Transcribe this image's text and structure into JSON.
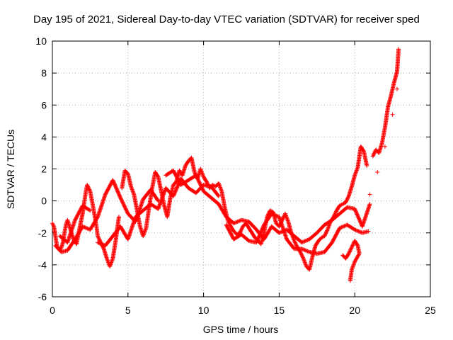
{
  "chart_data": {
    "type": "scatter",
    "title": "Day 195 of 2021, Sidereal Day-to-day VTEC variation (SDTVAR) for receiver sped",
    "xlabel": "GPS time / hours",
    "ylabel": "SDTVAR / TECUs",
    "xlim": [
      0,
      25
    ],
    "ylim": [
      -6,
      10
    ],
    "x_ticks": [
      0,
      5,
      10,
      15,
      20,
      25
    ],
    "y_ticks": [
      -6,
      -4,
      -2,
      0,
      2,
      4,
      6,
      8,
      10
    ],
    "x_tick_labels": [
      "0",
      "5",
      "10",
      "15",
      "20",
      "25"
    ],
    "y_tick_labels": [
      "-6",
      "-4",
      "-2",
      "0",
      "2",
      "4",
      "6",
      "8",
      "10"
    ],
    "grid": true,
    "legend": "none",
    "marker": "+",
    "series_color": "#ff0000",
    "series": [
      {
        "name": "SDTVAR",
        "points": [
          [
            0.0,
            -1.4
          ],
          [
            0.1,
            -1.6
          ],
          [
            0.2,
            -2.2
          ],
          [
            0.3,
            -2.8
          ],
          [
            0.4,
            -3.0
          ],
          [
            0.5,
            -3.1
          ],
          [
            0.6,
            -2.9
          ],
          [
            0.7,
            -2.6
          ],
          [
            0.8,
            -2.0
          ],
          [
            0.9,
            -1.5
          ],
          [
            1.0,
            -1.2
          ],
          [
            1.2,
            -1.8
          ],
          [
            1.4,
            -2.4
          ],
          [
            1.6,
            -2.7
          ],
          [
            1.8,
            -1.7
          ],
          [
            2.0,
            -0.8
          ],
          [
            2.2,
            0.5
          ],
          [
            2.3,
            1.0
          ],
          [
            2.5,
            0.6
          ],
          [
            2.7,
            -0.4
          ],
          [
            2.9,
            -1.5
          ],
          [
            3.0,
            -2.2
          ],
          [
            3.2,
            -2.6
          ],
          [
            3.4,
            -3.0
          ],
          [
            3.6,
            -3.6
          ],
          [
            3.8,
            -4.1
          ],
          [
            4.0,
            -3.6
          ],
          [
            4.2,
            -2.4
          ],
          [
            4.4,
            -1.0
          ],
          [
            4.6,
            0.8
          ],
          [
            4.8,
            1.9
          ],
          [
            5.0,
            1.7
          ],
          [
            5.2,
            0.9
          ],
          [
            5.4,
            0.4
          ],
          [
            5.6,
            -0.6
          ],
          [
            5.8,
            -1.6
          ],
          [
            6.0,
            -2.2
          ],
          [
            6.2,
            -1.7
          ],
          [
            6.4,
            -0.4
          ],
          [
            6.6,
            0.8
          ],
          [
            6.8,
            1.8
          ],
          [
            7.0,
            1.5
          ],
          [
            7.2,
            0.6
          ],
          [
            7.4,
            -0.3
          ],
          [
            7.6,
            -1.0
          ],
          [
            7.8,
            0.2
          ],
          [
            8.0,
            1.0
          ],
          [
            8.2,
            1.2
          ],
          [
            8.4,
            1.9
          ],
          [
            8.6,
            1.6
          ],
          [
            8.8,
            2.2
          ],
          [
            9.0,
            2.5
          ],
          [
            9.2,
            2.7
          ],
          [
            9.4,
            1.8
          ],
          [
            9.6,
            1.4
          ],
          [
            9.8,
            2.0
          ],
          [
            10.0,
            1.5
          ],
          [
            10.2,
            1.2
          ],
          [
            10.4,
            0.8
          ],
          [
            10.6,
            1.0
          ],
          [
            10.8,
            0.9
          ],
          [
            11.0,
            1.1
          ],
          [
            11.2,
            0.6
          ],
          [
            11.4,
            -0.4
          ],
          [
            11.6,
            -1.2
          ],
          [
            11.8,
            -1.6
          ],
          [
            12.0,
            -1.9
          ],
          [
            12.2,
            -2.1
          ],
          [
            12.4,
            -2.0
          ],
          [
            12.6,
            -1.6
          ],
          [
            12.8,
            -1.4
          ],
          [
            13.0,
            -1.7
          ],
          [
            13.2,
            -2.0
          ],
          [
            13.4,
            -2.3
          ],
          [
            13.6,
            -2.5
          ],
          [
            13.8,
            -2.7
          ],
          [
            14.0,
            -2.0
          ],
          [
            14.2,
            -1.0
          ],
          [
            14.4,
            -0.6
          ],
          [
            14.6,
            -0.7
          ],
          [
            14.8,
            -1.4
          ],
          [
            15.0,
            -1.6
          ],
          [
            15.2,
            -1.2
          ],
          [
            15.4,
            -0.8
          ],
          [
            15.6,
            -1.3
          ],
          [
            15.8,
            -2.0
          ],
          [
            16.0,
            -2.5
          ],
          [
            16.2,
            -2.9
          ],
          [
            16.4,
            -3.2
          ],
          [
            16.6,
            -3.6
          ],
          [
            16.8,
            -4.1
          ],
          [
            17.0,
            -4.3
          ],
          [
            17.2,
            -3.5
          ],
          [
            17.4,
            -2.8
          ],
          [
            17.6,
            -2.5
          ],
          [
            17.8,
            -2.3
          ],
          [
            18.0,
            -2.2
          ],
          [
            18.2,
            -1.8
          ],
          [
            18.4,
            -1.3
          ],
          [
            18.6,
            -1.0
          ],
          [
            18.8,
            -0.6
          ],
          [
            19.0,
            -0.3
          ],
          [
            19.2,
            -0.2
          ],
          [
            19.4,
            -0.1
          ],
          [
            19.6,
            0.3
          ],
          [
            19.8,
            0.9
          ],
          [
            20.0,
            1.6
          ],
          [
            20.2,
            2.1
          ],
          [
            20.4,
            3.4
          ],
          [
            20.6,
            3.1
          ],
          [
            20.8,
            2.2
          ],
          [
            21.0,
            0.4
          ],
          [
            21.2,
            2.8
          ],
          [
            21.4,
            3.2
          ],
          [
            21.6,
            3.0
          ],
          [
            21.8,
            3.6
          ],
          [
            22.0,
            4.6
          ],
          [
            22.2,
            5.9
          ],
          [
            22.4,
            6.6
          ],
          [
            22.6,
            7.4
          ],
          [
            22.8,
            8.1
          ],
          [
            22.9,
            9.5
          ],
          [
            0.2,
            -2.8
          ],
          [
            0.6,
            -3.2
          ],
          [
            1.0,
            -3.1
          ],
          [
            1.5,
            -2.4
          ],
          [
            2.0,
            -1.6
          ],
          [
            2.5,
            -1.8
          ],
          [
            3.0,
            -1.0
          ],
          [
            3.5,
            0.4
          ],
          [
            4.0,
            1.3
          ],
          [
            4.5,
            0.2
          ],
          [
            5.0,
            -0.8
          ],
          [
            5.5,
            -1.3
          ],
          [
            6.0,
            0.1
          ],
          [
            6.5,
            0.7
          ],
          [
            7.0,
            0.0
          ],
          [
            7.5,
            1.6
          ],
          [
            8.0,
            1.9
          ],
          [
            8.5,
            1.0
          ],
          [
            9.0,
            1.3
          ],
          [
            9.5,
            1.6
          ],
          [
            10.0,
            0.6
          ],
          [
            10.5,
            0.2
          ],
          [
            11.0,
            -0.2
          ],
          [
            11.5,
            -1.0
          ],
          [
            12.0,
            -1.4
          ],
          [
            12.5,
            -1.2
          ],
          [
            13.0,
            -1.3
          ],
          [
            13.5,
            -1.8
          ],
          [
            14.0,
            -2.4
          ],
          [
            14.5,
            -1.6
          ],
          [
            15.0,
            -2.0
          ],
          [
            15.5,
            -1.8
          ],
          [
            16.0,
            -2.2
          ],
          [
            16.5,
            -2.6
          ],
          [
            17.0,
            -2.4
          ],
          [
            17.5,
            -2.0
          ],
          [
            18.0,
            -1.5
          ],
          [
            18.5,
            -1.2
          ],
          [
            19.0,
            -0.8
          ],
          [
            19.5,
            -0.4
          ],
          [
            20.0,
            -0.5
          ],
          [
            20.5,
            -1.6
          ],
          [
            21.0,
            -0.2
          ],
          [
            21.5,
            1.8
          ],
          [
            22.0,
            3.4
          ],
          [
            22.5,
            5.4
          ],
          [
            22.8,
            7.0
          ],
          [
            0.5,
            -2.2
          ],
          [
            1.0,
            -2.6
          ],
          [
            1.5,
            -1.2
          ],
          [
            2.0,
            -0.3
          ],
          [
            2.5,
            -0.6
          ],
          [
            3.0,
            -2.6
          ],
          [
            3.5,
            -2.8
          ],
          [
            4.0,
            -2.2
          ],
          [
            4.5,
            -1.6
          ],
          [
            5.0,
            -2.4
          ],
          [
            5.5,
            -1.0
          ],
          [
            6.0,
            -0.6
          ],
          [
            6.5,
            -0.2
          ],
          [
            7.0,
            -0.5
          ],
          [
            7.5,
            0.8
          ],
          [
            8.0,
            0.3
          ],
          [
            8.5,
            1.4
          ],
          [
            9.0,
            0.8
          ],
          [
            9.5,
            0.5
          ],
          [
            10.0,
            1.0
          ],
          [
            10.5,
            0.9
          ],
          [
            11.0,
            0.3
          ],
          [
            11.5,
            -1.5
          ],
          [
            12.0,
            -2.4
          ],
          [
            12.5,
            -2.1
          ],
          [
            13.0,
            -2.5
          ],
          [
            13.5,
            -2.6
          ],
          [
            14.0,
            -1.5
          ],
          [
            14.5,
            -0.8
          ],
          [
            15.0,
            -1.0
          ],
          [
            15.5,
            -2.4
          ],
          [
            16.0,
            -3.0
          ],
          [
            16.5,
            -3.0
          ],
          [
            17.0,
            -3.2
          ],
          [
            17.5,
            -3.3
          ],
          [
            18.0,
            -3.2
          ],
          [
            18.5,
            -2.6
          ],
          [
            19.0,
            -1.7
          ],
          [
            19.5,
            -1.5
          ],
          [
            20.0,
            -1.8
          ],
          [
            20.5,
            -2.0
          ],
          [
            20.9,
            -1.9
          ],
          [
            19.2,
            -3.4
          ],
          [
            19.4,
            -3.6
          ],
          [
            19.6,
            -3.3
          ],
          [
            19.8,
            -2.9
          ],
          [
            20.0,
            -2.5
          ],
          [
            20.2,
            -2.8
          ],
          [
            20.3,
            -3.3
          ],
          [
            20.0,
            -3.8
          ],
          [
            19.8,
            -4.3
          ],
          [
            19.7,
            -5.0
          ]
        ]
      }
    ]
  }
}
